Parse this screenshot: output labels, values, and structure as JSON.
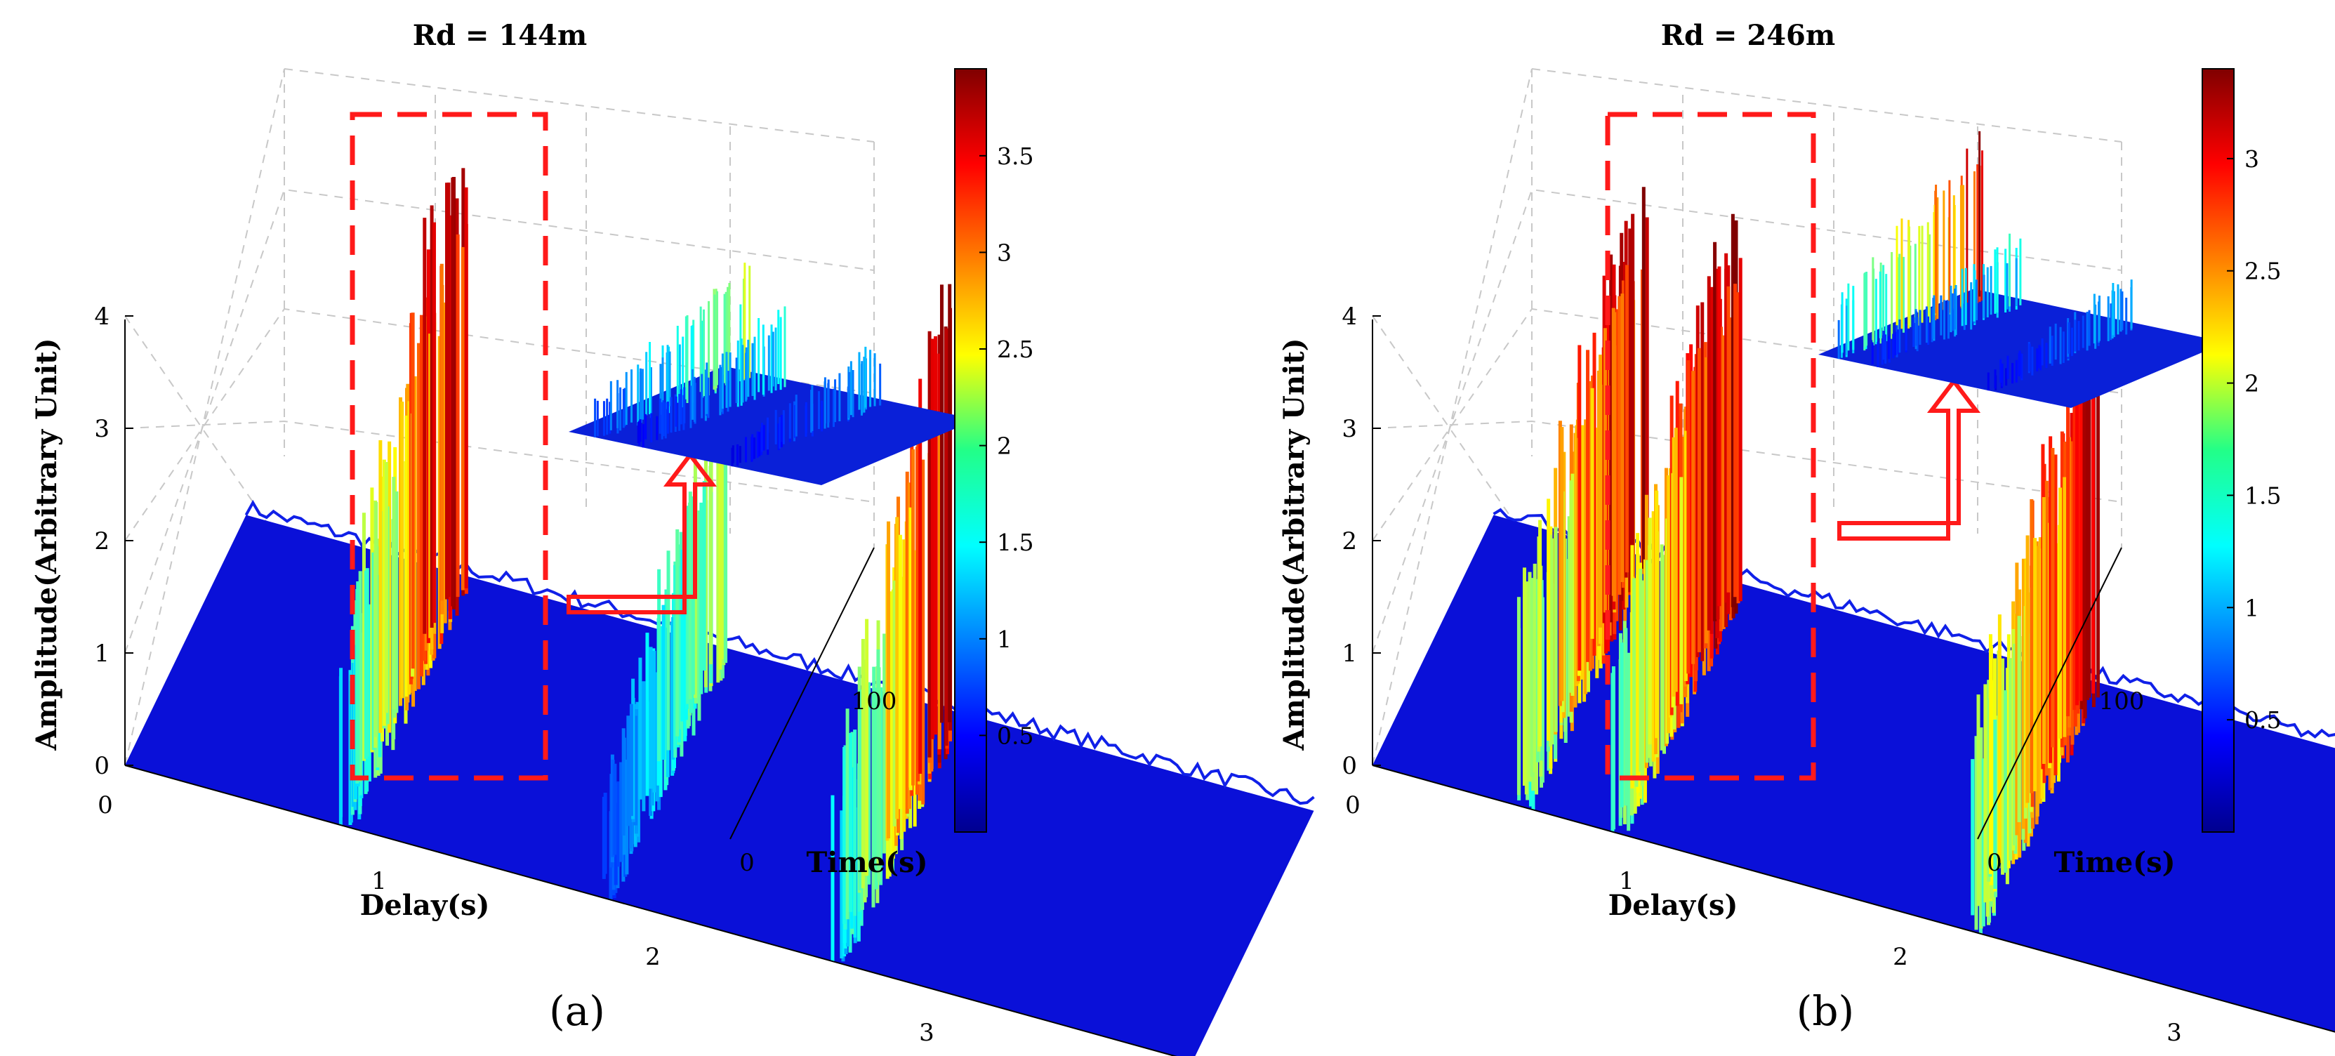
{
  "chart_data": [
    {
      "panel": "(a)",
      "type": "surface3d",
      "title": "Rd = 144m",
      "xlabel": "Delay(s)",
      "ylabel": "Time(s)",
      "zlabel": "Amplitude(Arbitrary Unit)",
      "x_ticks": [
        "0",
        "1",
        "2",
        "3"
      ],
      "y_ticks": [
        "0",
        "100"
      ],
      "z_ticks": [
        "0",
        "1",
        "2",
        "3",
        "4"
      ],
      "zlim": [
        0,
        4
      ],
      "colorbar": {
        "ticks": [
          "0.5",
          "1",
          "1.5",
          "2",
          "2.5",
          "3",
          "3.5"
        ],
        "range": [
          0,
          3.95
        ]
      },
      "features": [
        {
          "name": "peak-left",
          "delay": 0.8,
          "max_amplitude": 4.0
        },
        {
          "name": "peak-center-left",
          "delay": 1.75,
          "max_amplitude": 2.3
        },
        {
          "name": "peak-center-right",
          "delay": 2.6,
          "max_amplitude": 3.9
        },
        {
          "name": "noise-floor",
          "max_amplitude": 0.3
        }
      ]
    },
    {
      "panel": "(b)",
      "type": "surface3d",
      "title": "Rd = 246m",
      "xlabel": "Delay(s)",
      "ylabel": "Time(s)",
      "zlabel": "Amplitude(Arbitrary Unit)",
      "x_ticks": [
        "0",
        "1",
        "2",
        "3"
      ],
      "y_ticks": [
        "0",
        "100"
      ],
      "z_ticks": [
        "0",
        "1",
        "2",
        "3",
        "4"
      ],
      "zlim": [
        0,
        4
      ],
      "colorbar": {
        "ticks": [
          "0.5",
          "1",
          "1.5",
          "2",
          "2.5",
          "3"
        ],
        "range": [
          0,
          3.4
        ]
      },
      "features": [
        {
          "name": "peak-left",
          "delay": 0.55,
          "max_amplitude": 3.4
        },
        {
          "name": "peak-center-left",
          "delay": 0.9,
          "max_amplitude": 3.5
        },
        {
          "name": "peak-center-right",
          "delay": 2.2,
          "max_amplitude": 3.3
        },
        {
          "name": "noise-floor",
          "max_amplitude": 0.3
        }
      ]
    }
  ]
}
